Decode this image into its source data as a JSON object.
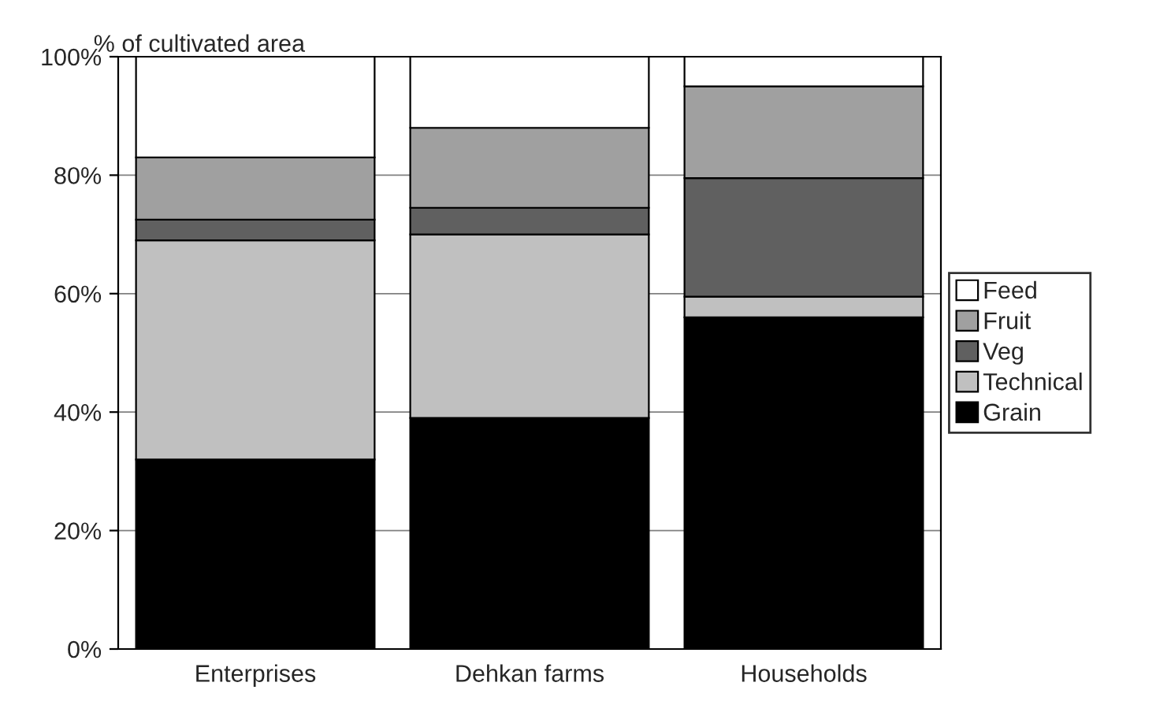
{
  "chart_data": {
    "type": "bar",
    "stacked": true,
    "ylabel": "% of cultivated area",
    "categories": [
      "Enterprises",
      "Dehkan farms",
      "Households"
    ],
    "series": [
      {
        "name": "Grain",
        "color": "#000000",
        "values": [
          32,
          39,
          56
        ]
      },
      {
        "name": "Technical",
        "color": "#c0c0c0",
        "values": [
          37,
          31,
          3.5
        ]
      },
      {
        "name": "Veg",
        "color": "#606060",
        "values": [
          3.5,
          4.5,
          20
        ]
      },
      {
        "name": "Fruit",
        "color": "#a0a0a0",
        "values": [
          10.5,
          13.5,
          15.5
        ]
      },
      {
        "name": "Feed",
        "color": "#ffffff",
        "values": [
          17,
          12,
          5
        ]
      }
    ],
    "ylim": [
      0,
      100
    ],
    "yticks": [
      {
        "value": 0,
        "label": "0%"
      },
      {
        "value": 20,
        "label": "20%"
      },
      {
        "value": 40,
        "label": "40%"
      },
      {
        "value": 60,
        "label": "60%"
      },
      {
        "value": 80,
        "label": "80%"
      },
      {
        "value": 100,
        "label": "100%"
      }
    ],
    "grid": "y",
    "legend": "right"
  }
}
